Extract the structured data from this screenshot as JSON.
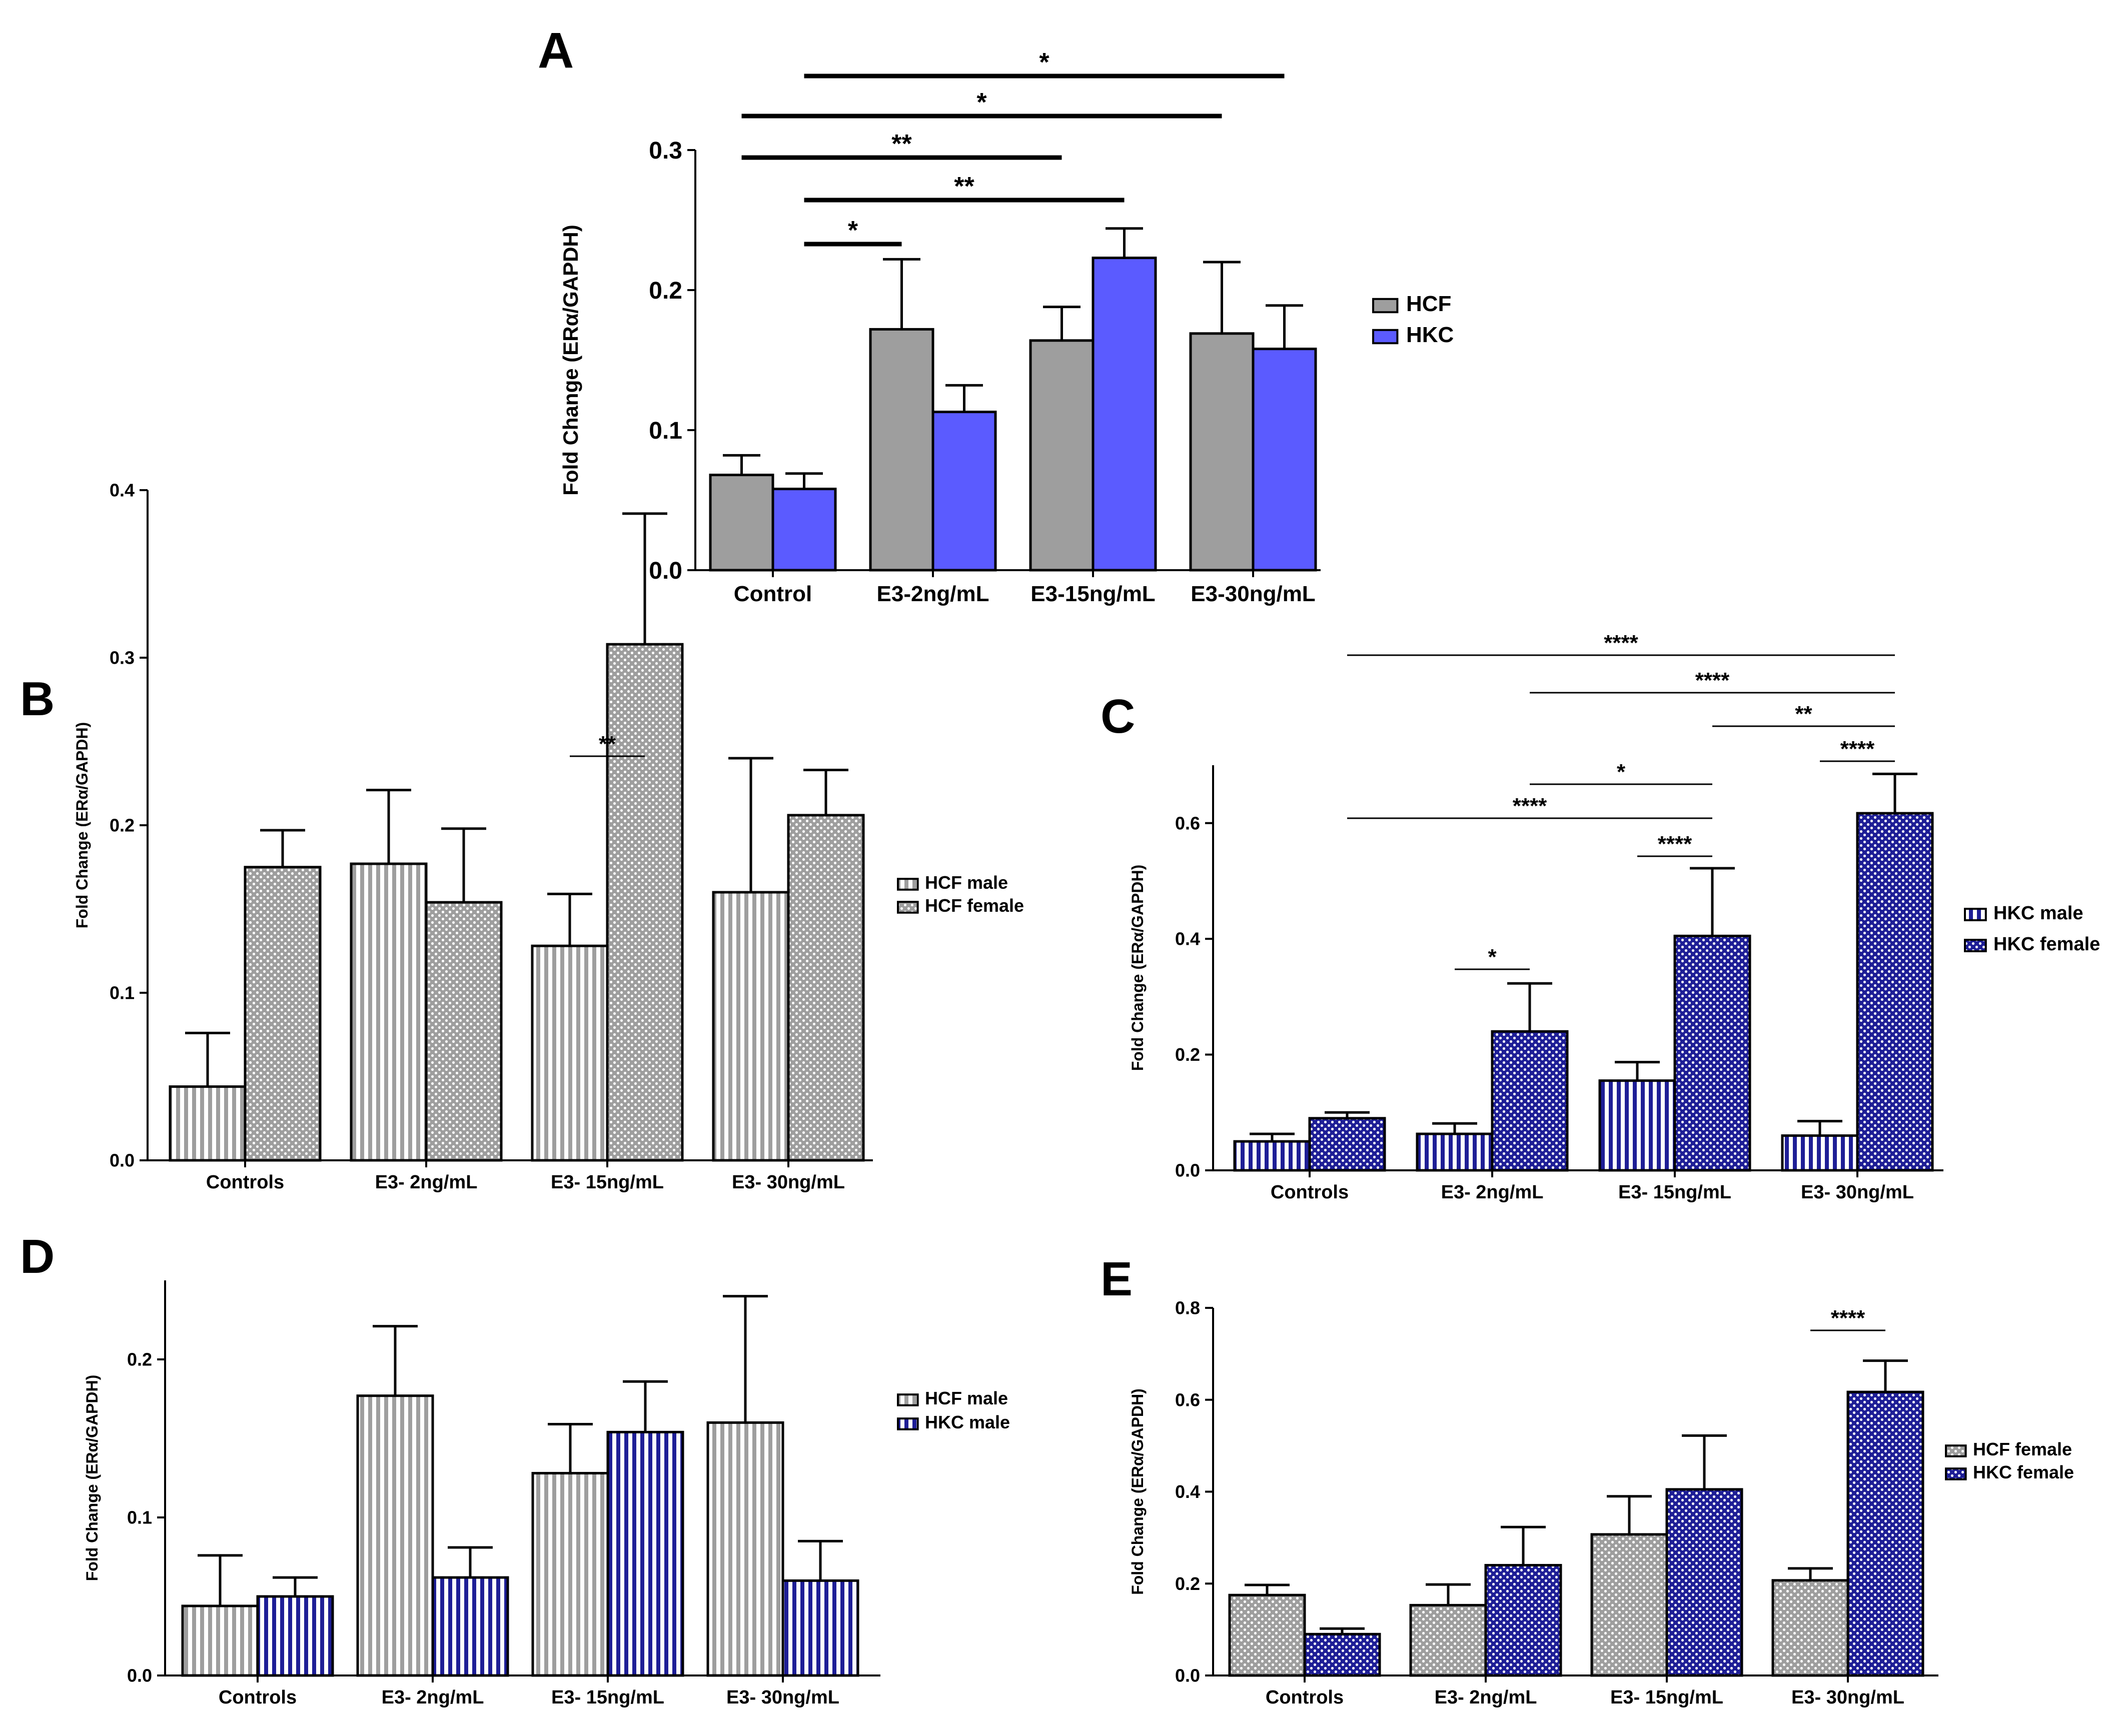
{
  "chart_data": [
    {
      "panel": "A",
      "type": "bar",
      "ylabel": "Fold Change (ERα/GAPDH)",
      "ylim": [
        0,
        0.3
      ],
      "yticks": [
        "0.0",
        "0.1",
        "0.2",
        "0.3"
      ],
      "categories": [
        "Control",
        "E3-2ng/mL",
        "E3-15ng/mL",
        "E3-30ng/mL"
      ],
      "series": [
        {
          "name": "HCF",
          "values": [
            0.068,
            0.172,
            0.164,
            0.169
          ],
          "errors": [
            0.014,
            0.05,
            0.024,
            0.051
          ],
          "color": "#9e9e9e",
          "pattern": "solid"
        },
        {
          "name": "HKC",
          "values": [
            0.058,
            0.113,
            0.223,
            0.158
          ],
          "errors": [
            0.011,
            0.019,
            0.021,
            0.031
          ],
          "color": "#5b5bff",
          "pattern": "solid"
        }
      ],
      "significance": [
        {
          "label": "*",
          "from": [
            0,
            1
          ],
          "to": [
            3,
            1
          ]
        },
        {
          "label": "*",
          "from": [
            0,
            0
          ],
          "to": [
            3,
            0
          ]
        },
        {
          "label": "**",
          "from": [
            0,
            0
          ],
          "to": [
            2,
            0
          ]
        },
        {
          "label": "**",
          "from": [
            0,
            1
          ],
          "to": [
            2,
            1
          ]
        },
        {
          "label": "*",
          "from": [
            0,
            1
          ],
          "to": [
            1,
            0
          ]
        }
      ],
      "legend": "right"
    },
    {
      "panel": "B",
      "type": "bar",
      "ylabel": "Fold Change (ERα/GAPDH)",
      "ylim": [
        0,
        0.4
      ],
      "yticks": [
        "0.0",
        "0.1",
        "0.2",
        "0.3",
        "0.4"
      ],
      "categories": [
        "Controls",
        "E3- 2ng/mL",
        "E3- 15ng/mL",
        "E3- 30ng/mL"
      ],
      "series": [
        {
          "name": "HCF male",
          "values": [
            0.044,
            0.177,
            0.128,
            0.16
          ],
          "errors": [
            0.032,
            0.044,
            0.031,
            0.08
          ],
          "color": "#9e9e9e",
          "pattern": "vlines"
        },
        {
          "name": "HCF female",
          "values": [
            0.175,
            0.154,
            0.308,
            0.206
          ],
          "errors": [
            0.022,
            0.044,
            0.078,
            0.027
          ],
          "color": "#9e9e9e",
          "pattern": "dots"
        }
      ],
      "significance": [
        {
          "label": "**",
          "from": [
            2,
            0
          ],
          "to": [
            2,
            1
          ]
        }
      ],
      "legend": "right"
    },
    {
      "panel": "C",
      "type": "bar",
      "ylabel": "Fold Change (ERα/GAPDH)",
      "ylim": [
        0,
        0.7
      ],
      "yticks": [
        "0.0",
        "0.2",
        "0.4",
        "0.6"
      ],
      "categories": [
        "Controls",
        "E3- 2ng/mL",
        "E3- 15ng/mL",
        "E3- 30ng/mL"
      ],
      "series": [
        {
          "name": "HKC male",
          "values": [
            0.05,
            0.063,
            0.155,
            0.06
          ],
          "errors": [
            0.013,
            0.018,
            0.032,
            0.025
          ],
          "color": "#1e1e96",
          "pattern": "vlines"
        },
        {
          "name": "HKC female",
          "values": [
            0.09,
            0.24,
            0.405,
            0.617
          ],
          "errors": [
            0.01,
            0.083,
            0.117,
            0.068
          ],
          "color": "#1e1e96",
          "pattern": "dots"
        }
      ],
      "significance": [
        {
          "label": "****",
          "from": [
            0,
            1
          ],
          "to": [
            3,
            1
          ]
        },
        {
          "label": "****",
          "from": [
            1,
            1
          ],
          "to": [
            3,
            1
          ]
        },
        {
          "label": "**",
          "from": [
            2,
            1
          ],
          "to": [
            3,
            1
          ]
        },
        {
          "label": "****",
          "from": [
            3,
            0
          ],
          "to": [
            3,
            1
          ]
        },
        {
          "label": "*",
          "from": [
            1,
            1
          ],
          "to": [
            2,
            1
          ]
        },
        {
          "label": "****",
          "from": [
            0,
            1
          ],
          "to": [
            2,
            1
          ]
        },
        {
          "label": "****",
          "from": [
            2,
            0
          ],
          "to": [
            2,
            1
          ]
        },
        {
          "label": "*",
          "from": [
            1,
            0
          ],
          "to": [
            1,
            1
          ]
        }
      ],
      "legend": "right"
    },
    {
      "panel": "D",
      "type": "bar",
      "ylabel": "Fold Change (ERα/GAPDH)",
      "ylim": [
        0,
        0.25
      ],
      "yticks": [
        "0.0",
        "0.1",
        "0.2"
      ],
      "categories": [
        "Controls",
        "E3- 2ng/mL",
        "E3- 15ng/mL",
        "E3- 30ng/mL"
      ],
      "series": [
        {
          "name": "HCF male",
          "values": [
            0.044,
            0.177,
            0.128,
            0.16
          ],
          "errors": [
            0.032,
            0.044,
            0.031,
            0.08
          ],
          "color": "#9e9e9e",
          "pattern": "vlines"
        },
        {
          "name": "HKC male",
          "values": [
            0.05,
            0.062,
            0.154,
            0.06
          ],
          "errors": [
            0.012,
            0.019,
            0.032,
            0.025
          ],
          "color": "#1e1e96",
          "pattern": "vlines"
        }
      ],
      "significance": [],
      "legend": "right"
    },
    {
      "panel": "E",
      "type": "bar",
      "ylabel": "Fold Change (ERα/GAPDH)",
      "ylim": [
        0,
        0.8
      ],
      "yticks": [
        "0.0",
        "0.2",
        "0.4",
        "0.6",
        "0.8"
      ],
      "categories": [
        "Controls",
        "E3- 2ng/mL",
        "E3- 15ng/mL",
        "E3- 30ng/mL"
      ],
      "series": [
        {
          "name": "HCF female",
          "values": [
            0.175,
            0.153,
            0.307,
            0.207
          ],
          "errors": [
            0.022,
            0.045,
            0.083,
            0.026
          ],
          "color": "#9e9e9e",
          "pattern": "dots"
        },
        {
          "name": "HKC female",
          "values": [
            0.09,
            0.24,
            0.405,
            0.617
          ],
          "errors": [
            0.012,
            0.083,
            0.117,
            0.068
          ],
          "color": "#1e1e96",
          "pattern": "dots"
        }
      ],
      "significance": [
        {
          "label": "****",
          "from": [
            3,
            0
          ],
          "to": [
            3,
            1
          ]
        }
      ],
      "legend": "right"
    }
  ]
}
